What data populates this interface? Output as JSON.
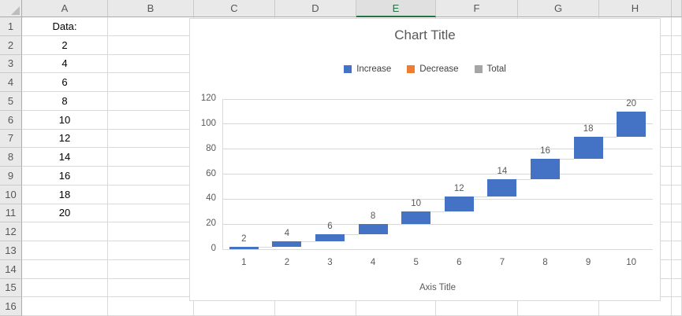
{
  "sheet": {
    "columns": [
      {
        "label": "A",
        "width": 109
      },
      {
        "label": "B",
        "width": 109
      },
      {
        "label": "C",
        "width": 103
      },
      {
        "label": "D",
        "width": 103
      },
      {
        "label": "E",
        "width": 101
      },
      {
        "label": "F",
        "width": 104
      },
      {
        "label": "G",
        "width": 103
      },
      {
        "label": "H",
        "width": 92
      },
      {
        "label": "",
        "width": 13
      }
    ],
    "selected_column": "E",
    "row_labels": [
      "1",
      "2",
      "3",
      "4",
      "5",
      "6",
      "7",
      "8",
      "9",
      "10",
      "11",
      "12",
      "13",
      "14",
      "15",
      "16"
    ],
    "column_a_values": [
      "Data:",
      "2",
      "4",
      "6",
      "8",
      "10",
      "12",
      "14",
      "16",
      "18",
      "20"
    ]
  },
  "chart": {
    "title": "Chart Title",
    "axis_title": "Axis Title",
    "legend": [
      {
        "label": "Increase",
        "color": "#4472C4"
      },
      {
        "label": "Decrease",
        "color": "#ED7D31"
      },
      {
        "label": "Total",
        "color": "#A5A5A5"
      }
    ],
    "bar_color": "#4472C4",
    "text_color": "#595959",
    "gridline_color": "#D9D9D9"
  },
  "chart_data": {
    "type": "bar",
    "subtype": "waterfall-cumulative",
    "title": "Chart Title",
    "xlabel": "Axis Title",
    "ylabel": "",
    "categories": [
      "1",
      "2",
      "3",
      "4",
      "5",
      "6",
      "7",
      "8",
      "9",
      "10"
    ],
    "series": [
      {
        "name": "Increase",
        "color": "#4472C4",
        "values": [
          2,
          4,
          6,
          8,
          10,
          12,
          14,
          16,
          18,
          20
        ]
      },
      {
        "name": "Decrease",
        "color": "#ED7D31",
        "values": []
      },
      {
        "name": "Total",
        "color": "#A5A5A5",
        "values": []
      }
    ],
    "data_labels": [
      "2",
      "4",
      "6",
      "8",
      "10",
      "12",
      "14",
      "16",
      "18",
      "20"
    ],
    "cumulative_ranges": [
      [
        0,
        2
      ],
      [
        2,
        6
      ],
      [
        6,
        12
      ],
      [
        12,
        20
      ],
      [
        20,
        30
      ],
      [
        30,
        42
      ],
      [
        42,
        56
      ],
      [
        56,
        72
      ],
      [
        72,
        90
      ],
      [
        90,
        110
      ]
    ],
    "ylim": [
      0,
      120
    ],
    "yticks": [
      0,
      20,
      40,
      60,
      80,
      100,
      120
    ],
    "grid": true,
    "legend_position": "top"
  }
}
